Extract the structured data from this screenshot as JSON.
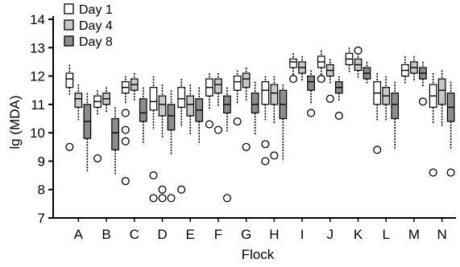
{
  "chart_data": {
    "type": "box",
    "xlabel": "Flock",
    "ylabel": "lg (MDA)",
    "ylim": [
      7,
      14
    ],
    "yticks": [
      7,
      8,
      9,
      10,
      11,
      12,
      13,
      14
    ],
    "categories": [
      "A",
      "B",
      "C",
      "D",
      "E",
      "F",
      "G",
      "H",
      "I",
      "J",
      "K",
      "L",
      "M",
      "N"
    ],
    "legend_position": "top-left",
    "series": [
      {
        "name": "Day 1",
        "fill": "#ffffff",
        "boxes": [
          {
            "q1": 11.6,
            "median": 11.9,
            "q3": 12.1,
            "whisker_low": 11.3,
            "whisker_high": 12.4,
            "outliers": [
              9.5
            ]
          },
          {
            "q1": 10.9,
            "median": 11.1,
            "q3": 11.3,
            "whisker_low": 10.6,
            "whisker_high": 11.5,
            "outliers": [
              9.1
            ]
          },
          {
            "q1": 11.4,
            "median": 11.6,
            "q3": 11.8,
            "whisker_low": 11.0,
            "whisker_high": 12.0,
            "outliers": [
              10.7,
              10.1,
              9.7,
              8.3
            ]
          },
          {
            "q1": 10.8,
            "median": 11.1,
            "q3": 11.6,
            "whisker_low": 10.1,
            "whisker_high": 12.0,
            "outliers": [
              8.5,
              7.7
            ]
          },
          {
            "q1": 10.9,
            "median": 11.2,
            "q3": 11.6,
            "whisker_low": 10.2,
            "whisker_high": 11.9,
            "outliers": [
              8.0
            ]
          },
          {
            "q1": 11.3,
            "median": 11.6,
            "q3": 11.9,
            "whisker_low": 10.8,
            "whisker_high": 12.1,
            "outliers": [
              10.3
            ]
          },
          {
            "q1": 11.5,
            "median": 11.8,
            "q3": 12.0,
            "whisker_low": 11.0,
            "whisker_high": 12.2,
            "outliers": [
              10.4
            ]
          },
          {
            "q1": 11.0,
            "median": 11.5,
            "q3": 11.8,
            "whisker_low": 10.4,
            "whisker_high": 12.0,
            "outliers": [
              9.6,
              9.0
            ]
          },
          {
            "q1": 12.3,
            "median": 12.5,
            "q3": 12.6,
            "whisker_low": 12.0,
            "whisker_high": 12.8,
            "outliers": [
              11.9
            ]
          },
          {
            "q1": 12.3,
            "median": 12.5,
            "q3": 12.7,
            "whisker_low": 12.0,
            "whisker_high": 12.9,
            "outliers": [
              11.9
            ]
          },
          {
            "q1": 12.4,
            "median": 12.6,
            "q3": 12.8,
            "whisker_low": 12.1,
            "whisker_high": 13.0,
            "outliers": []
          },
          {
            "q1": 11.0,
            "median": 11.4,
            "q3": 11.8,
            "whisker_low": 10.4,
            "whisker_high": 12.1,
            "outliers": [
              9.4
            ]
          },
          {
            "q1": 12.0,
            "median": 12.2,
            "q3": 12.4,
            "whisker_low": 11.7,
            "whisker_high": 12.7,
            "outliers": []
          },
          {
            "q1": 10.9,
            "median": 11.3,
            "q3": 11.7,
            "whisker_low": 10.3,
            "whisker_high": 12.1,
            "outliers": [
              8.6
            ]
          }
        ]
      },
      {
        "name": "Day 4",
        "fill": "#c8c8c8",
        "boxes": [
          {
            "q1": 10.9,
            "median": 11.2,
            "q3": 11.4,
            "whisker_low": 10.4,
            "whisker_high": 11.7,
            "outliers": []
          },
          {
            "q1": 11.0,
            "median": 11.2,
            "q3": 11.4,
            "whisker_low": 10.7,
            "whisker_high": 11.6,
            "outliers": []
          },
          {
            "q1": 11.5,
            "median": 11.7,
            "q3": 11.9,
            "whisker_low": 11.1,
            "whisker_high": 12.1,
            "outliers": []
          },
          {
            "q1": 10.6,
            "median": 11.0,
            "q3": 11.3,
            "whisker_low": 9.8,
            "whisker_high": 11.7,
            "outliers": [
              8.0,
              7.7
            ]
          },
          {
            "q1": 10.6,
            "median": 11.0,
            "q3": 11.3,
            "whisker_low": 9.9,
            "whisker_high": 11.7,
            "outliers": []
          },
          {
            "q1": 11.4,
            "median": 11.7,
            "q3": 11.9,
            "whisker_low": 10.9,
            "whisker_high": 12.1,
            "outliers": [
              10.1
            ]
          },
          {
            "q1": 11.6,
            "median": 11.9,
            "q3": 12.1,
            "whisker_low": 11.1,
            "whisker_high": 12.3,
            "outliers": [
              9.5
            ]
          },
          {
            "q1": 11.0,
            "median": 11.4,
            "q3": 11.7,
            "whisker_low": 10.3,
            "whisker_high": 12.0,
            "outliers": [
              9.2
            ]
          },
          {
            "q1": 12.1,
            "median": 12.3,
            "q3": 12.5,
            "whisker_low": 11.8,
            "whisker_high": 12.7,
            "outliers": []
          },
          {
            "q1": 12.0,
            "median": 12.2,
            "q3": 12.4,
            "whisker_low": 11.7,
            "whisker_high": 12.6,
            "outliers": [
              11.2
            ]
          },
          {
            "q1": 12.2,
            "median": 12.4,
            "q3": 12.6,
            "whisker_low": 11.9,
            "whisker_high": 12.8,
            "outliers": [
              12.9
            ]
          },
          {
            "q1": 11.0,
            "median": 11.3,
            "q3": 11.6,
            "whisker_low": 10.4,
            "whisker_high": 12.0,
            "outliers": []
          },
          {
            "q1": 12.1,
            "median": 12.3,
            "q3": 12.5,
            "whisker_low": 11.8,
            "whisker_high": 12.7,
            "outliers": []
          },
          {
            "q1": 11.0,
            "median": 11.5,
            "q3": 11.9,
            "whisker_low": 10.2,
            "whisker_high": 12.2,
            "outliers": []
          }
        ]
      },
      {
        "name": "Day 8",
        "fill": "#8c8c8c",
        "boxes": [
          {
            "q1": 9.8,
            "median": 10.4,
            "q3": 11.0,
            "whisker_low": 8.6,
            "whisker_high": 11.4,
            "outliers": []
          },
          {
            "q1": 9.4,
            "median": 10.0,
            "q3": 10.5,
            "whisker_low": 8.5,
            "whisker_high": 10.9,
            "outliers": []
          },
          {
            "q1": 10.4,
            "median": 10.7,
            "q3": 11.2,
            "whisker_low": 9.6,
            "whisker_high": 11.6,
            "outliers": []
          },
          {
            "q1": 10.1,
            "median": 10.6,
            "q3": 11.0,
            "whisker_low": 9.2,
            "whisker_high": 11.5,
            "outliers": [
              7.7
            ]
          },
          {
            "q1": 10.4,
            "median": 10.8,
            "q3": 11.2,
            "whisker_low": 9.6,
            "whisker_high": 11.6,
            "outliers": []
          },
          {
            "q1": 10.7,
            "median": 11.0,
            "q3": 11.3,
            "whisker_low": 10.0,
            "whisker_high": 11.6,
            "outliers": [
              7.7
            ]
          },
          {
            "q1": 10.7,
            "median": 11.0,
            "q3": 11.4,
            "whisker_low": 9.9,
            "whisker_high": 11.8,
            "outliers": []
          },
          {
            "q1": 10.5,
            "median": 11.0,
            "q3": 11.5,
            "whisker_low": 9.0,
            "whisker_high": 11.7,
            "outliers": []
          },
          {
            "q1": 11.5,
            "median": 11.8,
            "q3": 12.0,
            "whisker_low": 11.0,
            "whisker_high": 12.2,
            "outliers": [
              10.7
            ]
          },
          {
            "q1": 11.4,
            "median": 11.6,
            "q3": 11.8,
            "whisker_low": 11.1,
            "whisker_high": 12.0,
            "outliers": [
              10.6
            ]
          },
          {
            "q1": 11.9,
            "median": 12.1,
            "q3": 12.3,
            "whisker_low": 11.7,
            "whisker_high": 12.5,
            "outliers": []
          },
          {
            "q1": 10.5,
            "median": 11.0,
            "q3": 11.4,
            "whisker_low": 9.4,
            "whisker_high": 11.8,
            "outliers": []
          },
          {
            "q1": 11.9,
            "median": 12.1,
            "q3": 12.3,
            "whisker_low": 11.6,
            "whisker_high": 12.5,
            "outliers": [
              11.1
            ]
          },
          {
            "q1": 10.4,
            "median": 10.9,
            "q3": 11.4,
            "whisker_low": 9.4,
            "whisker_high": 11.8,
            "outliers": [
              8.6
            ]
          }
        ]
      }
    ]
  }
}
